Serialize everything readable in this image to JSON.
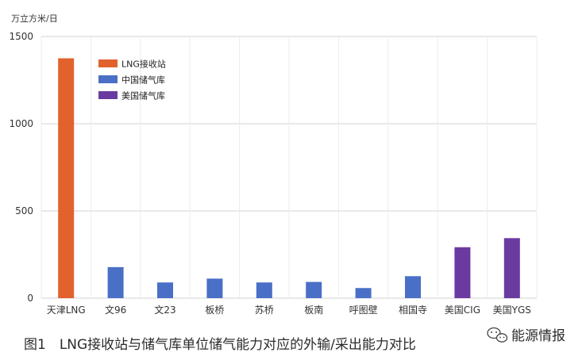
{
  "chart_data": {
    "type": "bar",
    "unit_label": "万立方米/日",
    "categories": [
      "天津LNG",
      "文96",
      "文23",
      "板桥",
      "苏桥",
      "板南",
      "呼图壁",
      "相国寺",
      "美国CIG",
      "美国YGS"
    ],
    "values": [
      1375,
      178,
      90,
      112,
      90,
      93,
      58,
      126,
      292,
      344
    ],
    "category_group": [
      0,
      1,
      1,
      1,
      1,
      1,
      1,
      1,
      2,
      2
    ],
    "series": [
      {
        "name": "LNG接收站",
        "color": "#E2622E"
      },
      {
        "name": "中国储气库",
        "color": "#4A6FC6"
      },
      {
        "name": "美国储气库",
        "color": "#6B3AA0"
      }
    ],
    "y_ticks": [
      "0",
      "500",
      "1000",
      "1500"
    ],
    "ylim": [
      0,
      1500
    ],
    "grid": true,
    "legend_position": "top-left"
  },
  "caption": "图1　LNG接收站与储气库单位储气能力对应的外输/采出能力对比",
  "brand": "能源情报"
}
